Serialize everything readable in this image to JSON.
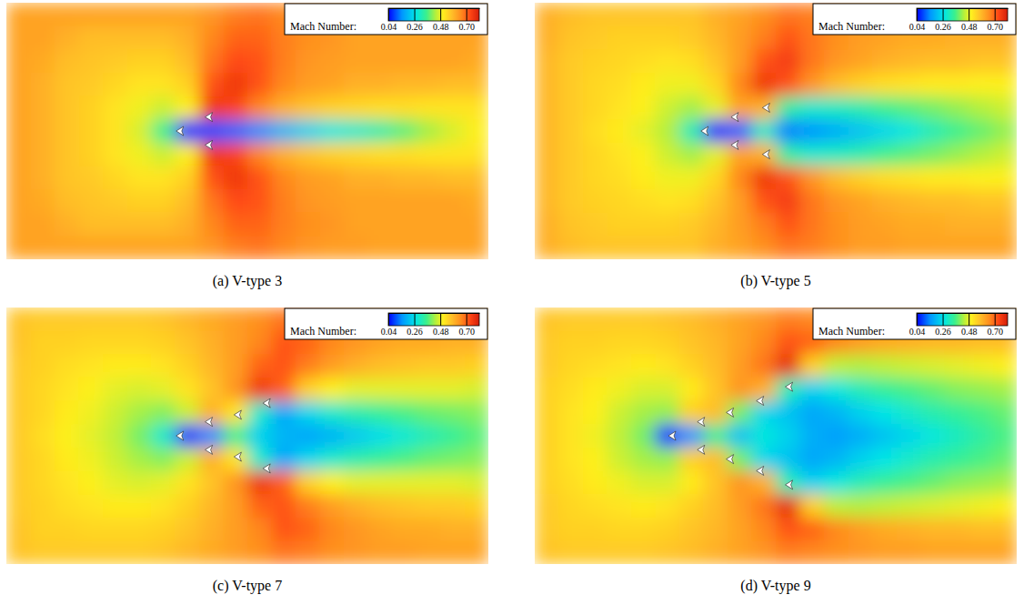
{
  "chart_data": [
    {
      "type": "heatmap",
      "title": "(a) V-type 3",
      "tick_labels": false,
      "colorbar_label": "Mach Number:",
      "colorbar_range": [
        0.04,
        0.81
      ],
      "colorbar_ticks": [
        0.04,
        0.26,
        0.48,
        {
          "value": 0.7,
          "label": "0.70"
        }
      ],
      "cells": [
        [
          0.62,
          0.62,
          0.62,
          0.62,
          0.62,
          0.62,
          0.62,
          0.62,
          0.64,
          0.67,
          0.68,
          0.66,
          0.64,
          0.63,
          0.63,
          0.62,
          0.62,
          0.62,
          0.62,
          0.62
        ],
        [
          0.62,
          0.62,
          0.6,
          0.58,
          0.58,
          0.58,
          0.58,
          0.6,
          0.66,
          0.7,
          0.7,
          0.67,
          0.65,
          0.64,
          0.62,
          0.62,
          0.62,
          0.62,
          0.62,
          0.62
        ],
        [
          0.62,
          0.61,
          0.58,
          0.57,
          0.56,
          0.55,
          0.55,
          0.58,
          0.68,
          0.73,
          0.72,
          0.67,
          0.64,
          0.63,
          0.62,
          0.62,
          0.62,
          0.62,
          0.62,
          0.61
        ],
        [
          0.62,
          0.6,
          0.57,
          0.56,
          0.54,
          0.52,
          0.52,
          0.55,
          0.72,
          0.76,
          0.72,
          0.66,
          0.63,
          0.62,
          0.6,
          0.6,
          0.59,
          0.59,
          0.58,
          0.58
        ],
        [
          0.62,
          0.6,
          0.57,
          0.55,
          0.52,
          0.49,
          0.46,
          0.5,
          0.76,
          0.74,
          0.66,
          0.6,
          0.57,
          0.55,
          0.54,
          0.53,
          0.53,
          0.52,
          0.52,
          0.52
        ],
        [
          0.62,
          0.6,
          0.57,
          0.55,
          0.52,
          0.47,
          0.36,
          0.06,
          0.1,
          0.12,
          0.15,
          0.2,
          0.24,
          0.28,
          0.3,
          0.33,
          0.38,
          0.43,
          0.47,
          0.5
        ],
        [
          0.62,
          0.6,
          0.57,
          0.55,
          0.52,
          0.49,
          0.46,
          0.5,
          0.76,
          0.74,
          0.66,
          0.6,
          0.57,
          0.55,
          0.54,
          0.53,
          0.53,
          0.52,
          0.52,
          0.52
        ],
        [
          0.62,
          0.6,
          0.57,
          0.56,
          0.54,
          0.52,
          0.52,
          0.55,
          0.72,
          0.76,
          0.72,
          0.66,
          0.63,
          0.62,
          0.6,
          0.6,
          0.59,
          0.59,
          0.58,
          0.58
        ],
        [
          0.62,
          0.61,
          0.58,
          0.57,
          0.56,
          0.55,
          0.55,
          0.58,
          0.68,
          0.73,
          0.72,
          0.67,
          0.64,
          0.63,
          0.62,
          0.62,
          0.62,
          0.62,
          0.62,
          0.61
        ],
        [
          0.62,
          0.62,
          0.6,
          0.58,
          0.58,
          0.58,
          0.58,
          0.6,
          0.66,
          0.7,
          0.7,
          0.67,
          0.65,
          0.64,
          0.62,
          0.62,
          0.62,
          0.62,
          0.62,
          0.62
        ],
        [
          0.62,
          0.62,
          0.62,
          0.62,
          0.62,
          0.62,
          0.62,
          0.62,
          0.64,
          0.67,
          0.68,
          0.66,
          0.64,
          0.63,
          0.63,
          0.62,
          0.62,
          0.62,
          0.62,
          0.62
        ]
      ],
      "bodies": [
        [
          7.2,
          5.5
        ],
        [
          8.4,
          4.9
        ],
        [
          8.4,
          6.1
        ]
      ]
    },
    {
      "type": "heatmap",
      "title": "(b) V-type 5",
      "tick_labels": false,
      "colorbar_label": "Mach Number:",
      "colorbar_range": [
        0.04,
        0.81
      ],
      "colorbar_ticks": [
        0.04,
        0.26,
        0.48,
        {
          "value": 0.7,
          "label": "0.70"
        }
      ],
      "cells": [
        [
          0.6,
          0.58,
          0.57,
          0.57,
          0.57,
          0.57,
          0.57,
          0.6,
          0.62,
          0.65,
          0.68,
          0.67,
          0.65,
          0.63,
          0.63,
          0.62,
          0.62,
          0.62,
          0.62,
          0.62
        ],
        [
          0.6,
          0.57,
          0.56,
          0.55,
          0.55,
          0.55,
          0.56,
          0.59,
          0.63,
          0.67,
          0.72,
          0.68,
          0.65,
          0.63,
          0.62,
          0.61,
          0.61,
          0.6,
          0.6,
          0.6
        ],
        [
          0.59,
          0.56,
          0.55,
          0.54,
          0.53,
          0.52,
          0.53,
          0.57,
          0.63,
          0.72,
          0.75,
          0.68,
          0.64,
          0.62,
          0.6,
          0.59,
          0.58,
          0.58,
          0.57,
          0.57
        ],
        [
          0.59,
          0.56,
          0.54,
          0.53,
          0.51,
          0.49,
          0.49,
          0.54,
          0.66,
          0.76,
          0.72,
          0.64,
          0.58,
          0.55,
          0.53,
          0.52,
          0.51,
          0.51,
          0.5,
          0.5
        ],
        [
          0.59,
          0.56,
          0.54,
          0.52,
          0.5,
          0.46,
          0.43,
          0.48,
          0.62,
          0.6,
          0.34,
          0.3,
          0.31,
          0.33,
          0.36,
          0.38,
          0.4,
          0.42,
          0.44,
          0.46
        ],
        [
          0.59,
          0.56,
          0.53,
          0.51,
          0.48,
          0.44,
          0.32,
          0.06,
          0.12,
          0.3,
          0.14,
          0.16,
          0.19,
          0.22,
          0.25,
          0.28,
          0.32,
          0.36,
          0.39,
          0.42
        ],
        [
          0.59,
          0.56,
          0.54,
          0.52,
          0.5,
          0.46,
          0.43,
          0.48,
          0.62,
          0.6,
          0.34,
          0.3,
          0.31,
          0.33,
          0.36,
          0.38,
          0.4,
          0.42,
          0.44,
          0.46
        ],
        [
          0.59,
          0.56,
          0.54,
          0.53,
          0.51,
          0.49,
          0.49,
          0.54,
          0.66,
          0.76,
          0.72,
          0.64,
          0.58,
          0.55,
          0.53,
          0.52,
          0.51,
          0.51,
          0.5,
          0.5
        ],
        [
          0.59,
          0.56,
          0.55,
          0.54,
          0.53,
          0.52,
          0.53,
          0.57,
          0.63,
          0.72,
          0.75,
          0.68,
          0.64,
          0.62,
          0.6,
          0.59,
          0.58,
          0.58,
          0.57,
          0.57
        ],
        [
          0.6,
          0.57,
          0.56,
          0.55,
          0.55,
          0.55,
          0.56,
          0.59,
          0.63,
          0.67,
          0.72,
          0.68,
          0.65,
          0.63,
          0.62,
          0.61,
          0.61,
          0.6,
          0.6,
          0.6
        ],
        [
          0.6,
          0.58,
          0.57,
          0.57,
          0.57,
          0.57,
          0.57,
          0.6,
          0.62,
          0.65,
          0.68,
          0.67,
          0.65,
          0.63,
          0.63,
          0.62,
          0.62,
          0.62,
          0.62,
          0.62
        ]
      ],
      "bodies": [
        [
          7.05,
          5.5
        ],
        [
          8.3,
          4.9
        ],
        [
          8.3,
          6.1
        ],
        [
          9.6,
          4.5
        ],
        [
          9.6,
          6.5
        ]
      ]
    },
    {
      "type": "heatmap",
      "title": "(c) V-type 7",
      "tick_labels": false,
      "colorbar_label": "Mach Number:",
      "colorbar_range": [
        0.04,
        0.81
      ],
      "colorbar_ticks": [
        0.04,
        0.26,
        0.48,
        {
          "value": 0.7,
          "label": "0.70"
        }
      ],
      "cells": [
        [
          0.57,
          0.56,
          0.56,
          0.56,
          0.56,
          0.56,
          0.57,
          0.59,
          0.61,
          0.63,
          0.65,
          0.68,
          0.67,
          0.65,
          0.64,
          0.63,
          0.63,
          0.62,
          0.62,
          0.62
        ],
        [
          0.57,
          0.55,
          0.55,
          0.54,
          0.54,
          0.54,
          0.55,
          0.57,
          0.6,
          0.63,
          0.66,
          0.72,
          0.7,
          0.66,
          0.64,
          0.62,
          0.61,
          0.61,
          0.6,
          0.6
        ],
        [
          0.56,
          0.55,
          0.53,
          0.52,
          0.51,
          0.51,
          0.52,
          0.55,
          0.59,
          0.63,
          0.7,
          0.72,
          0.67,
          0.63,
          0.6,
          0.58,
          0.57,
          0.56,
          0.56,
          0.55
        ],
        [
          0.56,
          0.54,
          0.52,
          0.5,
          0.48,
          0.47,
          0.48,
          0.52,
          0.57,
          0.64,
          0.76,
          0.7,
          0.55,
          0.5,
          0.48,
          0.48,
          0.48,
          0.48,
          0.48,
          0.47
        ],
        [
          0.56,
          0.54,
          0.51,
          0.49,
          0.46,
          0.43,
          0.41,
          0.46,
          0.6,
          0.52,
          0.3,
          0.18,
          0.25,
          0.3,
          0.33,
          0.35,
          0.37,
          0.39,
          0.4,
          0.41
        ],
        [
          0.56,
          0.53,
          0.5,
          0.48,
          0.45,
          0.4,
          0.3,
          0.06,
          0.15,
          0.36,
          0.24,
          0.2,
          0.18,
          0.2,
          0.23,
          0.26,
          0.29,
          0.32,
          0.35,
          0.38
        ],
        [
          0.56,
          0.54,
          0.51,
          0.49,
          0.46,
          0.43,
          0.41,
          0.46,
          0.6,
          0.52,
          0.3,
          0.18,
          0.25,
          0.3,
          0.33,
          0.35,
          0.37,
          0.39,
          0.4,
          0.41
        ],
        [
          0.56,
          0.54,
          0.52,
          0.5,
          0.48,
          0.47,
          0.48,
          0.52,
          0.57,
          0.64,
          0.76,
          0.7,
          0.55,
          0.5,
          0.48,
          0.48,
          0.48,
          0.48,
          0.48,
          0.47
        ],
        [
          0.56,
          0.55,
          0.53,
          0.52,
          0.51,
          0.51,
          0.52,
          0.55,
          0.59,
          0.63,
          0.7,
          0.72,
          0.67,
          0.63,
          0.6,
          0.58,
          0.57,
          0.56,
          0.56,
          0.55
        ],
        [
          0.57,
          0.55,
          0.55,
          0.54,
          0.54,
          0.54,
          0.55,
          0.57,
          0.6,
          0.63,
          0.66,
          0.72,
          0.7,
          0.66,
          0.64,
          0.62,
          0.61,
          0.61,
          0.6,
          0.6
        ],
        [
          0.57,
          0.56,
          0.56,
          0.56,
          0.56,
          0.56,
          0.57,
          0.59,
          0.61,
          0.63,
          0.65,
          0.68,
          0.67,
          0.65,
          0.64,
          0.63,
          0.63,
          0.62,
          0.62,
          0.62
        ]
      ],
      "bodies": [
        [
          7.2,
          5.5
        ],
        [
          8.4,
          4.9
        ],
        [
          8.4,
          6.1
        ],
        [
          9.6,
          4.6
        ],
        [
          9.6,
          6.4
        ],
        [
          10.8,
          4.1
        ],
        [
          10.8,
          6.9
        ]
      ]
    },
    {
      "type": "heatmap",
      "title": "(d) V-type 9",
      "tick_labels": false,
      "colorbar_label": "Mach Number:",
      "colorbar_range": [
        0.04,
        0.81
      ],
      "colorbar_ticks": [
        0.04,
        0.26,
        0.48,
        {
          "value": 0.7,
          "label": "0.70"
        }
      ],
      "cells": [
        [
          0.57,
          0.56,
          0.56,
          0.56,
          0.56,
          0.57,
          0.58,
          0.6,
          0.62,
          0.64,
          0.67,
          0.66,
          0.65,
          0.64,
          0.63,
          0.63,
          0.62,
          0.62,
          0.62,
          0.62
        ],
        [
          0.56,
          0.55,
          0.55,
          0.54,
          0.54,
          0.55,
          0.57,
          0.59,
          0.62,
          0.66,
          0.72,
          0.7,
          0.66,
          0.63,
          0.61,
          0.6,
          0.59,
          0.59,
          0.58,
          0.58
        ],
        [
          0.56,
          0.54,
          0.53,
          0.52,
          0.51,
          0.52,
          0.55,
          0.58,
          0.63,
          0.68,
          0.78,
          0.55,
          0.45,
          0.44,
          0.45,
          0.46,
          0.47,
          0.48,
          0.49,
          0.5
        ],
        [
          0.55,
          0.53,
          0.51,
          0.49,
          0.47,
          0.47,
          0.51,
          0.57,
          0.64,
          0.6,
          0.32,
          0.24,
          0.28,
          0.32,
          0.35,
          0.37,
          0.39,
          0.41,
          0.42,
          0.43
        ],
        [
          0.55,
          0.52,
          0.5,
          0.46,
          0.43,
          0.42,
          0.55,
          0.58,
          0.4,
          0.25,
          0.22,
          0.18,
          0.2,
          0.24,
          0.27,
          0.3,
          0.33,
          0.35,
          0.37,
          0.39
        ],
        [
          0.55,
          0.52,
          0.49,
          0.45,
          0.4,
          0.07,
          0.16,
          0.35,
          0.22,
          0.28,
          0.24,
          0.19,
          0.17,
          0.19,
          0.22,
          0.25,
          0.28,
          0.31,
          0.34,
          0.37
        ],
        [
          0.55,
          0.52,
          0.5,
          0.46,
          0.43,
          0.42,
          0.55,
          0.58,
          0.4,
          0.25,
          0.22,
          0.18,
          0.2,
          0.24,
          0.27,
          0.3,
          0.33,
          0.35,
          0.37,
          0.39
        ],
        [
          0.55,
          0.53,
          0.51,
          0.49,
          0.47,
          0.47,
          0.51,
          0.57,
          0.64,
          0.6,
          0.32,
          0.24,
          0.28,
          0.32,
          0.35,
          0.37,
          0.39,
          0.41,
          0.42,
          0.43
        ],
        [
          0.56,
          0.54,
          0.53,
          0.52,
          0.51,
          0.52,
          0.55,
          0.58,
          0.63,
          0.68,
          0.78,
          0.55,
          0.45,
          0.44,
          0.45,
          0.46,
          0.47,
          0.48,
          0.49,
          0.5
        ],
        [
          0.56,
          0.55,
          0.55,
          0.54,
          0.54,
          0.55,
          0.57,
          0.59,
          0.62,
          0.66,
          0.72,
          0.7,
          0.66,
          0.63,
          0.61,
          0.6,
          0.59,
          0.59,
          0.58,
          0.58
        ],
        [
          0.57,
          0.56,
          0.56,
          0.56,
          0.56,
          0.57,
          0.58,
          0.6,
          0.62,
          0.64,
          0.67,
          0.66,
          0.65,
          0.64,
          0.63,
          0.63,
          0.62,
          0.62,
          0.62,
          0.62
        ]
      ],
      "bodies": [
        [
          5.7,
          5.5
        ],
        [
          6.9,
          4.9
        ],
        [
          6.9,
          6.1
        ],
        [
          8.1,
          4.5
        ],
        [
          8.1,
          6.5
        ],
        [
          9.35,
          4.0
        ],
        [
          9.35,
          7.0
        ],
        [
          10.55,
          3.4
        ],
        [
          10.55,
          7.6
        ]
      ]
    }
  ]
}
